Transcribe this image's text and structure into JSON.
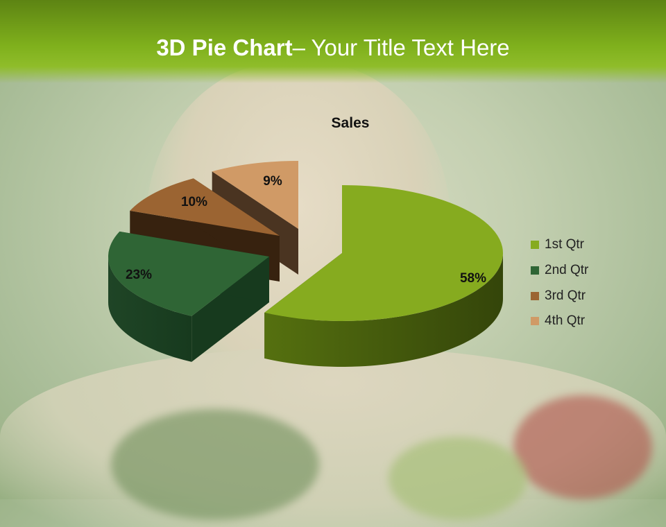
{
  "slide": {
    "title_bold": "3D Pie Chart",
    "title_rest": "– Your Title Text Here"
  },
  "chart_data": {
    "type": "pie",
    "style": "3d-exploded",
    "title": "Sales",
    "categories": [
      "1st Qtr",
      "2nd Qtr",
      "3rd Qtr",
      "4th Qtr"
    ],
    "values": [
      58,
      23,
      10,
      9
    ],
    "data_labels": [
      "58%",
      "23%",
      "10%",
      "9%"
    ],
    "colors": [
      "#86ab1f",
      "#2f6535",
      "#9b6432",
      "#d09a66"
    ],
    "legend_position": "right"
  }
}
